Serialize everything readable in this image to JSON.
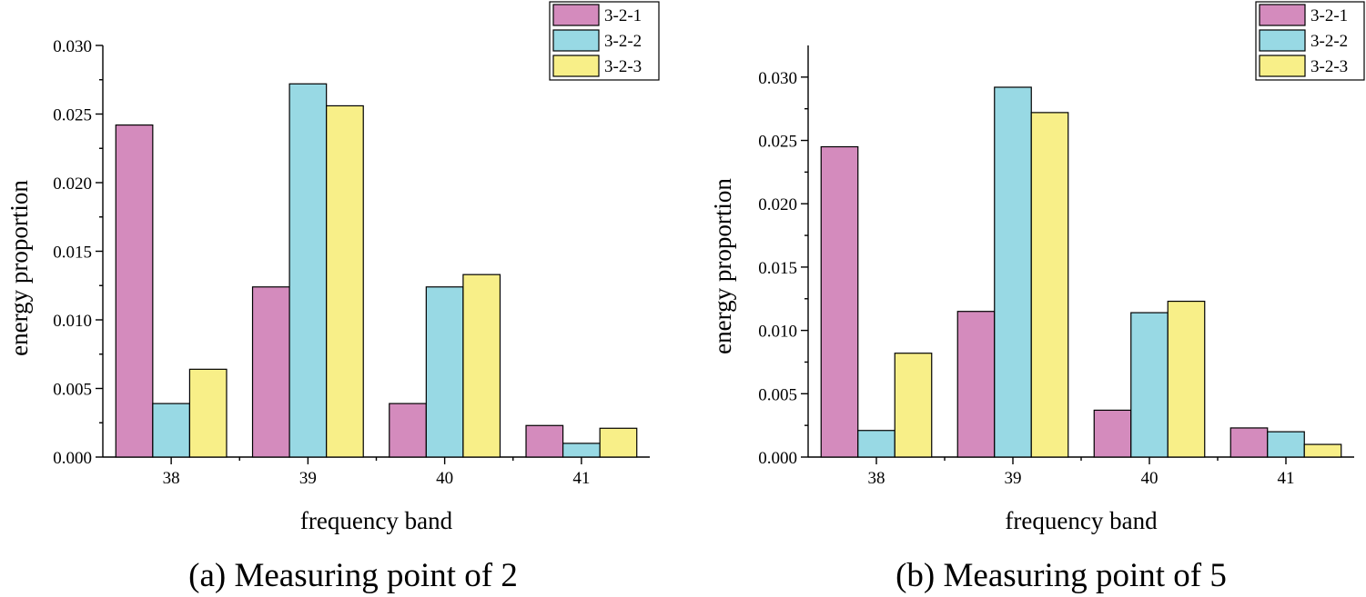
{
  "chart_data": [
    {
      "type": "bar",
      "caption": "(a) Measuring point of 2",
      "xlabel": "frequency band",
      "ylabel": "energy proportion",
      "categories": [
        "38",
        "39",
        "40",
        "41"
      ],
      "ylim": [
        0,
        0.03
      ],
      "yticks": [
        "0.000",
        "0.005",
        "0.010",
        "0.015",
        "0.020",
        "0.025",
        "0.030"
      ],
      "legend_position": "top-right",
      "series": [
        {
          "name": "3-2-1",
          "color": "#d48bbd",
          "values": [
            0.0242,
            0.0124,
            0.0039,
            0.0023
          ]
        },
        {
          "name": "3-2-2",
          "color": "#98d9e4",
          "values": [
            0.0039,
            0.0272,
            0.0124,
            0.001
          ]
        },
        {
          "name": "3-2-3",
          "color": "#f8ef88",
          "values": [
            0.0064,
            0.0256,
            0.0133,
            0.0021
          ]
        }
      ]
    },
    {
      "type": "bar",
      "caption": "(b) Measuring point of 5",
      "xlabel": "frequency band",
      "ylabel": "energy proportion",
      "categories": [
        "38",
        "39",
        "40",
        "41"
      ],
      "ylim": [
        0,
        0.0325
      ],
      "yticks": [
        "0.000",
        "0.005",
        "0.010",
        "0.015",
        "0.020",
        "0.025",
        "0.030"
      ],
      "legend_position": "top-right",
      "series": [
        {
          "name": "3-2-1",
          "color": "#d48bbd",
          "values": [
            0.0245,
            0.0115,
            0.0037,
            0.0023
          ]
        },
        {
          "name": "3-2-2",
          "color": "#98d9e4",
          "values": [
            0.0021,
            0.0292,
            0.0114,
            0.002
          ]
        },
        {
          "name": "3-2-3",
          "color": "#f8ef88",
          "values": [
            0.0082,
            0.0272,
            0.0123,
            0.001
          ]
        }
      ]
    }
  ]
}
